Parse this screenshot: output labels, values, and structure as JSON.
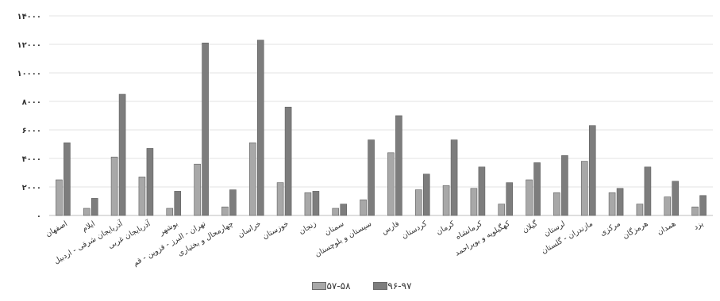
{
  "chart_data": {
    "type": "bar",
    "title": "",
    "xlabel": "",
    "ylabel": "",
    "ylim": [
      0,
      14000
    ],
    "yticks": [
      "۰",
      "۲۰۰۰",
      "۴۰۰۰",
      "۶۰۰۰",
      "۸۰۰۰",
      "۱۰۰۰۰",
      "۱۲۰۰۰",
      "۱۴۰۰۰"
    ],
    "ytick_values": [
      0,
      2000,
      4000,
      6000,
      8000,
      10000,
      12000,
      14000
    ],
    "grid": true,
    "legend_position": "bottom",
    "categories": [
      "اصفهان",
      "ایلام",
      "آذربایجان شرقی - اردبیل",
      "آذربایجان غربی",
      "بوشهر",
      "تهران - البرز - قزوین - قم",
      "چهارمحال و بختیاری",
      "خراسان",
      "خوزستان",
      "زنجان",
      "سمنان",
      "سیستان و بلوچستان",
      "فارس",
      "کردستان",
      "کرمان",
      "کرمانشاه",
      "کهگیلویه و بویراحمد",
      "گیلان",
      "لرستان",
      "مازندران - گلستان",
      "مرکزی",
      "هرمزگان",
      "همدان",
      "یزد"
    ],
    "series": [
      {
        "name": "۵۷-۵۸",
        "color": "#a8a8a8",
        "values": [
          2500,
          500,
          4100,
          2700,
          500,
          3600,
          600,
          5100,
          2300,
          1600,
          500,
          1100,
          4400,
          1800,
          2100,
          1900,
          800,
          2500,
          1600,
          3800,
          1600,
          800,
          1300,
          600
        ]
      },
      {
        "name": "۹۶-۹۷",
        "color": "#7d7d7d",
        "values": [
          5100,
          1200,
          8500,
          4700,
          1700,
          12100,
          1800,
          12300,
          7600,
          1700,
          800,
          5300,
          7000,
          2900,
          5300,
          3400,
          2300,
          3700,
          4200,
          6300,
          1900,
          3400,
          2400,
          1400
        ]
      }
    ]
  }
}
